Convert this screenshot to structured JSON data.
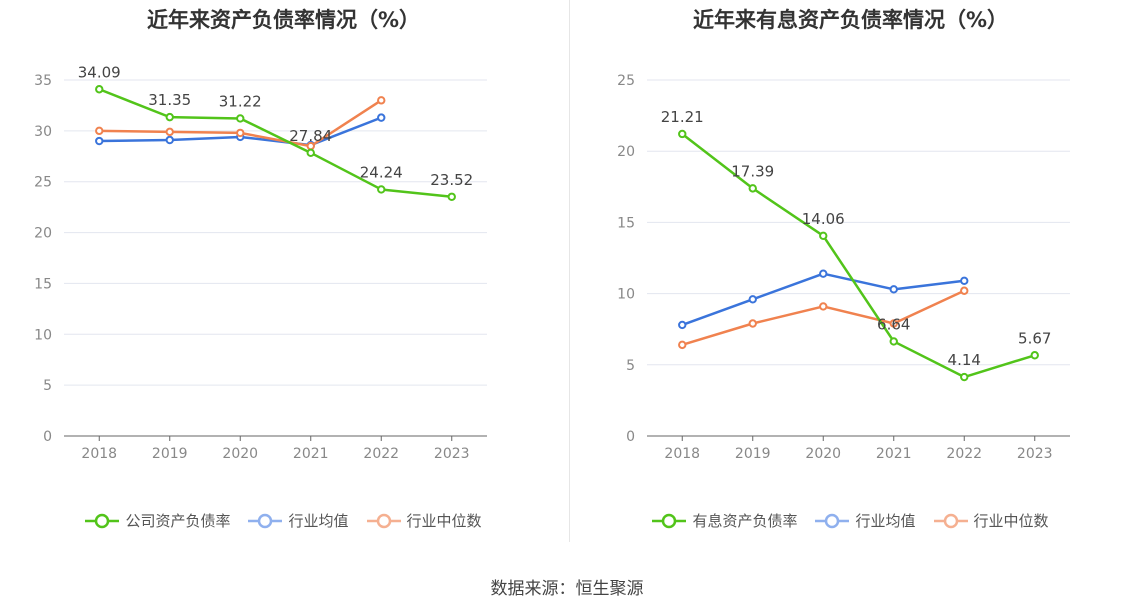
{
  "charts": [
    {
      "title": "近年来资产负债率情况（%）",
      "legend_labels": [
        "公司资产负债率",
        "行业均值",
        "行业中位数"
      ]
    },
    {
      "title": "近年来有息资产负债率情况（%）",
      "legend_labels": [
        "有息资产负债率",
        "行业均值",
        "行业中位数"
      ]
    }
  ],
  "source": "数据来源：恒生聚源",
  "chart_data": [
    {
      "type": "line",
      "title": "近年来资产负债率情况（%）",
      "categories": [
        "2018",
        "2019",
        "2020",
        "2021",
        "2022",
        "2023"
      ],
      "ylim": [
        0,
        35
      ],
      "yticks": [
        0,
        5,
        10,
        15,
        20,
        25,
        30,
        35
      ],
      "grid": true,
      "legend_position": "bottom",
      "series": [
        {
          "name": "公司资产负债率",
          "color": "#52c41a",
          "values": [
            34.09,
            31.35,
            31.22,
            27.84,
            24.24,
            23.52
          ],
          "labels": [
            "34.09",
            "31.35",
            "31.22",
            "27.84",
            "24.24",
            "23.52"
          ]
        },
        {
          "name": "行业均值",
          "color": "#3a74db",
          "values": [
            29.0,
            29.1,
            29.4,
            28.6,
            31.3,
            null
          ]
        },
        {
          "name": "行业中位数",
          "color": "#f0824f",
          "values": [
            30.0,
            29.9,
            29.8,
            28.5,
            33.0,
            null
          ]
        }
      ]
    },
    {
      "type": "line",
      "title": "近年来有息资产负债率情况（%）",
      "categories": [
        "2018",
        "2019",
        "2020",
        "2021",
        "2022",
        "2023"
      ],
      "ylim": [
        0,
        25
      ],
      "yticks": [
        0,
        5,
        10,
        15,
        20,
        25
      ],
      "grid": true,
      "legend_position": "bottom",
      "series": [
        {
          "name": "有息资产负债率",
          "color": "#52c41a",
          "values": [
            21.21,
            17.39,
            14.06,
            6.64,
            4.14,
            5.67
          ],
          "labels": [
            "21.21",
            "17.39",
            "14.06",
            "6.64",
            "4.14",
            "5.67"
          ]
        },
        {
          "name": "行业均值",
          "color": "#3a74db",
          "values": [
            7.8,
            9.6,
            11.4,
            10.3,
            10.9,
            null
          ]
        },
        {
          "name": "行业中位数",
          "color": "#f0824f",
          "values": [
            6.4,
            7.9,
            9.1,
            7.9,
            10.2,
            null
          ]
        }
      ]
    }
  ]
}
